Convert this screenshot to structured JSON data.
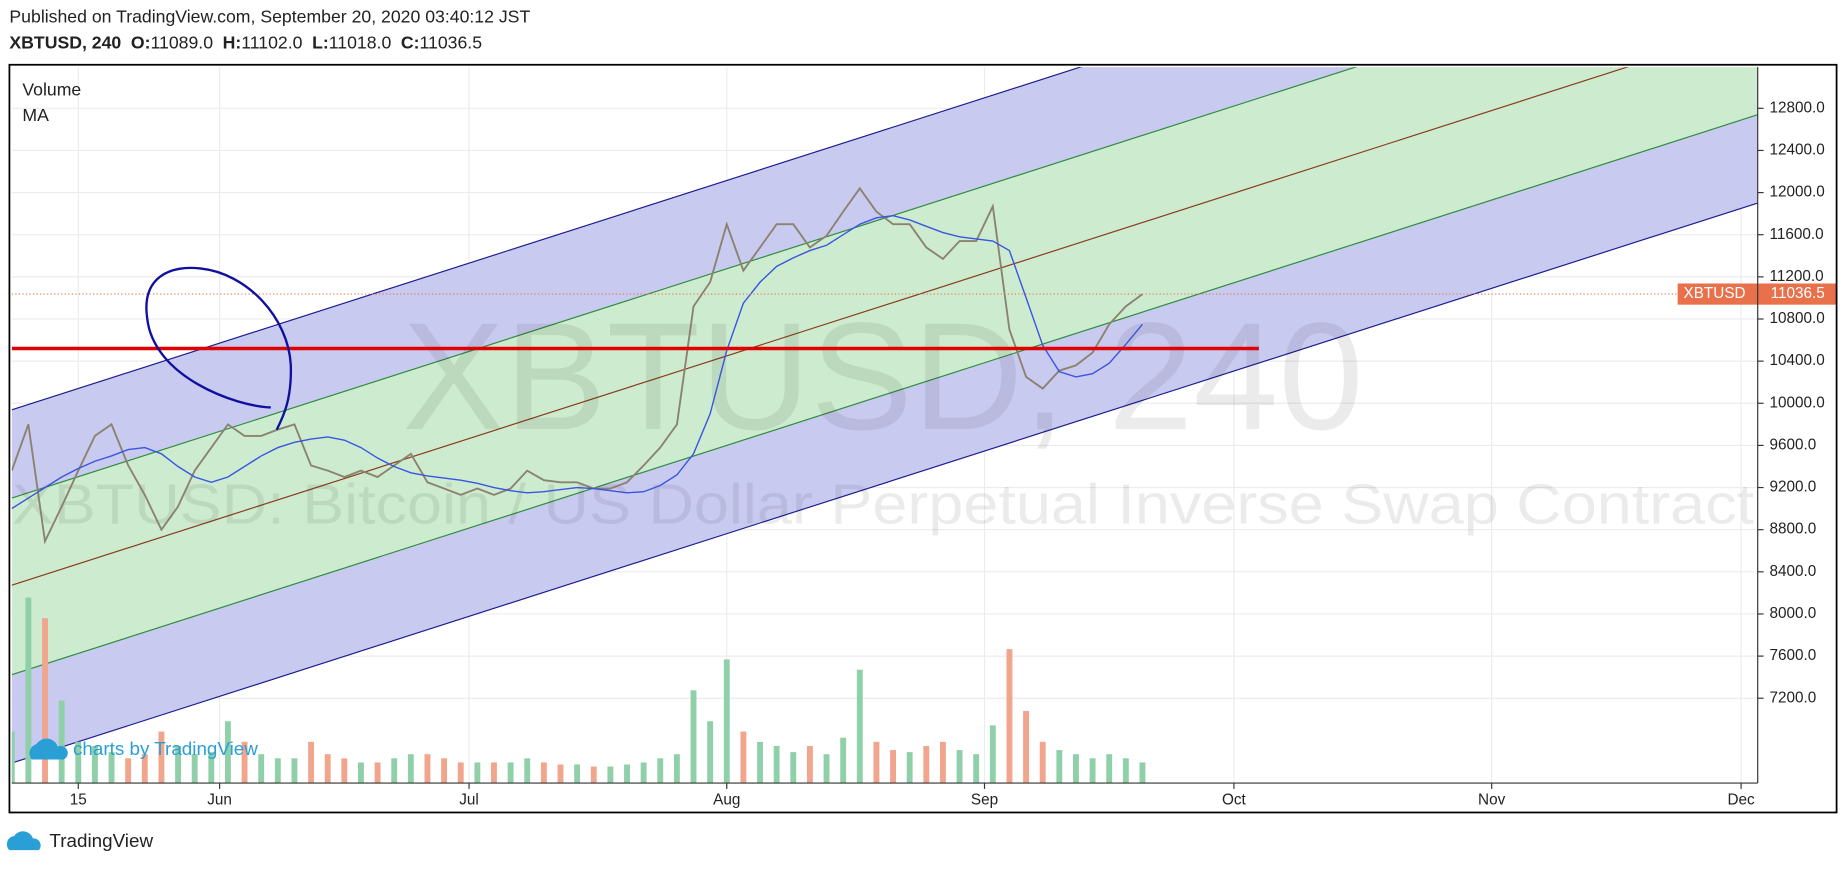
{
  "header": {
    "published": "Published on TradingView.com, September 20, 2020 03:40:12 JST",
    "symbol": "XBTUSD, 240",
    "ohlc": [
      {
        "name": "O:",
        "value": "11089.0"
      },
      {
        "name": "H:",
        "value": "11102.0"
      },
      {
        "name": "L:",
        "value": "11018.0"
      },
      {
        "name": "C:",
        "value": "11036.5"
      }
    ]
  },
  "chart_data": {
    "type": "line",
    "watermark": "XBTUSD, 240",
    "watermark_subtitle": "XBTUSD: Bitcoin / US Dollar Perpetual Inverse Swap Contract",
    "x": [
      "2020-05-07",
      "2020-05-09",
      "2020-05-11",
      "2020-05-13",
      "2020-05-15",
      "2020-05-17",
      "2020-05-19",
      "2020-05-21",
      "2020-05-23",
      "2020-05-25",
      "2020-05-27",
      "2020-05-29",
      "2020-05-31",
      "2020-06-02",
      "2020-06-04",
      "2020-06-06",
      "2020-06-08",
      "2020-06-10",
      "2020-06-12",
      "2020-06-14",
      "2020-06-16",
      "2020-06-18",
      "2020-06-20",
      "2020-06-22",
      "2020-06-24",
      "2020-06-26",
      "2020-06-28",
      "2020-06-30",
      "2020-07-02",
      "2020-07-04",
      "2020-07-06",
      "2020-07-08",
      "2020-07-10",
      "2020-07-12",
      "2020-07-14",
      "2020-07-16",
      "2020-07-18",
      "2020-07-20",
      "2020-07-22",
      "2020-07-24",
      "2020-07-26",
      "2020-07-28",
      "2020-07-30",
      "2020-08-01",
      "2020-08-03",
      "2020-08-05",
      "2020-08-07",
      "2020-08-09",
      "2020-08-11",
      "2020-08-13",
      "2020-08-15",
      "2020-08-17",
      "2020-08-19",
      "2020-08-21",
      "2020-08-23",
      "2020-08-25",
      "2020-08-27",
      "2020-08-29",
      "2020-08-31",
      "2020-09-02",
      "2020-09-04",
      "2020-09-06",
      "2020-09-08",
      "2020-09-10",
      "2020-09-12",
      "2020-09-14",
      "2020-09-16",
      "2020-09-18",
      "2020-09-20"
    ],
    "series": [
      {
        "name": "XBTUSD",
        "color": "#8c8270",
        "values": [
          9360,
          9800,
          8690,
          9020,
          9360,
          9690,
          9800,
          9410,
          9130,
          8800,
          9020,
          9360,
          9580,
          9800,
          9690,
          9690,
          9750,
          9800,
          9410,
          9360,
          9300,
          9360,
          9300,
          9410,
          9520,
          9250,
          9190,
          9130,
          9190,
          9130,
          9190,
          9360,
          9270,
          9250,
          9250,
          9190,
          9190,
          9250,
          9410,
          9580,
          9800,
          10920,
          11150,
          11700,
          11260,
          11480,
          11700,
          11700,
          11480,
          11590,
          11820,
          12040,
          11820,
          11700,
          11700,
          11480,
          11370,
          11540,
          11540,
          11870,
          10700,
          10250,
          10140,
          10310,
          10360,
          10480,
          10750,
          10920,
          11036.5
        ]
      },
      {
        "name": "MA",
        "color": "#3a55e0",
        "values": [
          9000,
          9100,
          9200,
          9300,
          9380,
          9450,
          9500,
          9560,
          9580,
          9520,
          9400,
          9300,
          9250,
          9300,
          9400,
          9500,
          9580,
          9630,
          9660,
          9680,
          9650,
          9580,
          9480,
          9400,
          9340,
          9310,
          9290,
          9270,
          9240,
          9200,
          9170,
          9150,
          9160,
          9180,
          9200,
          9190,
          9170,
          9150,
          9160,
          9220,
          9320,
          9520,
          9900,
          10500,
          10950,
          11150,
          11300,
          11380,
          11450,
          11500,
          11600,
          11700,
          11760,
          11780,
          11740,
          11680,
          11620,
          11580,
          11560,
          11540,
          11450,
          11000,
          10550,
          10300,
          10250,
          10280,
          10380,
          10560,
          10750
        ]
      }
    ],
    "volume": {
      "name": "Volume",
      "ylim": [
        0,
        100
      ],
      "up_color": "#8fd0a8",
      "down_color": "#f0a58c",
      "values": [
        25,
        90,
        80,
        40,
        20,
        18,
        15,
        12,
        14,
        25,
        18,
        14,
        15,
        30,
        20,
        14,
        12,
        12,
        20,
        14,
        12,
        10,
        10,
        12,
        14,
        14,
        12,
        10,
        10,
        10,
        10,
        12,
        10,
        9,
        9,
        8,
        8,
        9,
        10,
        12,
        14,
        45,
        30,
        60,
        25,
        20,
        18,
        15,
        18,
        14,
        22,
        55,
        20,
        16,
        15,
        18,
        20,
        16,
        14,
        28,
        65,
        35,
        20,
        16,
        14,
        12,
        14,
        12,
        10
      ]
    },
    "channel_lines": [
      {
        "color": "#1c1c90",
        "start": 9938,
        "end": 15254
      },
      {
        "color": "#2e8b3e",
        "start": 9100,
        "end": 14416
      },
      {
        "color": "#8b3a1a",
        "start": 8273,
        "end": 13589
      },
      {
        "color": "#2e8b3e",
        "start": 7423,
        "end": 12739
      },
      {
        "color": "#1c1c90",
        "start": 6585,
        "end": 11901
      }
    ],
    "band_colors": [
      "#c9caf0",
      "#cdeccf",
      "#cdeccf",
      "#c9caf0"
    ],
    "hline": {
      "value": 10520,
      "color": "#e00000",
      "x": [
        "2020-05-07",
        "2020-10-04"
      ]
    },
    "price_label_color": "#e8704a",
    "xlim": [
      "2020-05-07",
      "2020-12-03"
    ],
    "xticks": [
      {
        "value": "2020-05-15",
        "label": "15"
      },
      {
        "value": "2020-06-01",
        "label": "Jun"
      },
      {
        "value": "2020-07-01",
        "label": "Jul"
      },
      {
        "value": "2020-08-01",
        "label": "Aug"
      },
      {
        "value": "2020-09-01",
        "label": "Sep"
      },
      {
        "value": "2020-10-01",
        "label": "Oct"
      },
      {
        "value": "2020-11-01",
        "label": "Nov"
      },
      {
        "value": "2020-12-01",
        "label": "Dec"
      }
    ],
    "ylim": [
      6395,
      13191
    ],
    "yticks": [
      {
        "value": 7200,
        "label": "7200.0"
      },
      {
        "value": 7600,
        "label": "7600.0"
      },
      {
        "value": 8000,
        "label": "8000.0"
      },
      {
        "value": 8400,
        "label": "8400.0"
      },
      {
        "value": 8800,
        "label": "8800.0"
      },
      {
        "value": 9200,
        "label": "9200.0"
      },
      {
        "value": 9600,
        "label": "9600.0"
      },
      {
        "value": 10000,
        "label": "10000.0"
      },
      {
        "value": 10400,
        "label": "10400.0"
      },
      {
        "value": 10800,
        "label": "10800.0"
      },
      {
        "value": 11200,
        "label": "11200.0"
      },
      {
        "value": 11600,
        "label": "11600.0"
      },
      {
        "value": 12000,
        "label": "12000.0"
      },
      {
        "value": 12400,
        "label": "12400.0"
      },
      {
        "value": 12800,
        "label": "12800.0"
      }
    ],
    "grid": true
  },
  "branding": {
    "chart_logo": "charts by TradingView",
    "footer": "TradingView"
  }
}
